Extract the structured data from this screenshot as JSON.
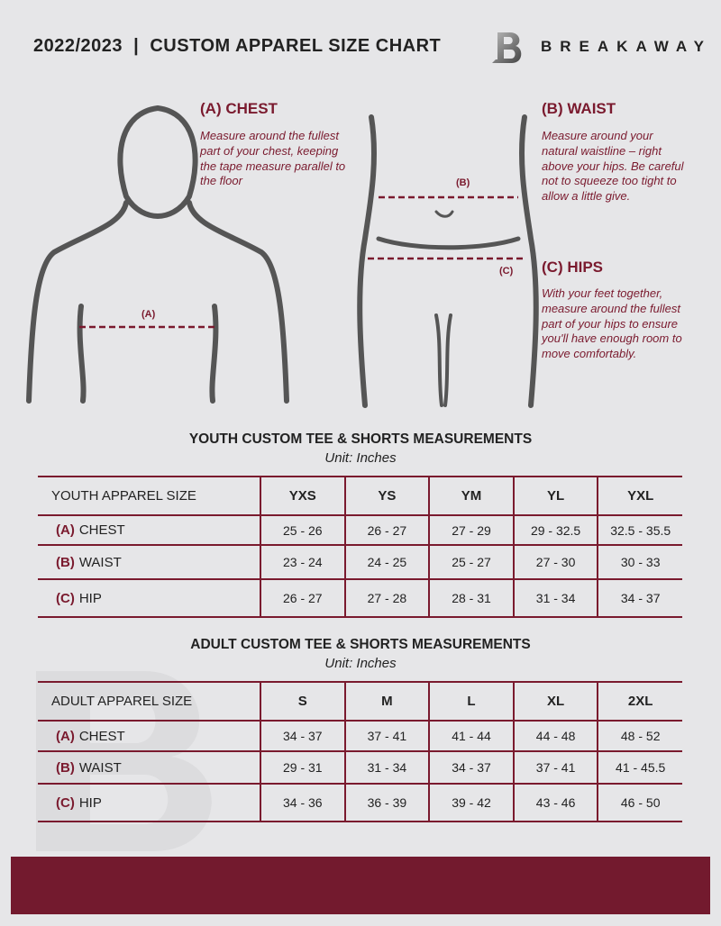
{
  "header": {
    "title": "2022/2023  |  CUSTOM APPAREL SIZE CHART",
    "brand": "BREAKAWAY",
    "logo_letter": "B"
  },
  "colors": {
    "accent": "#7a1a2e",
    "background": "#e6e6e8"
  },
  "chest": {
    "heading": "(A) CHEST",
    "description": "Measure around the fullest part of your chest, keeping the tape measure parallel to the floor",
    "marker": "(A)"
  },
  "waist": {
    "heading": "(B) WAIST",
    "description": "Measure around your natural waistline – right above your hips. Be careful not to squeeze too tight to allow a little give.",
    "marker": "(B)"
  },
  "hips": {
    "heading": "(C) HIPS",
    "description": "With your feet together, measure around the fullest part of your hips to ensure you'll have enough room to move comfortably.",
    "marker": "(C)"
  },
  "youth": {
    "title": "YOUTH CUSTOM TEE & SHORTS MEASUREMENTS",
    "unit": "Unit: Inches",
    "header": [
      "YOUTH APPAREL SIZE",
      "YXS",
      "YS",
      "YM",
      "YL",
      "YXL"
    ],
    "rows": [
      {
        "code": "(A)",
        "name": "CHEST",
        "values": [
          "25 - 26",
          "26 - 27",
          "27 - 29",
          "29 - 32.5",
          "32.5 - 35.5"
        ]
      },
      {
        "code": "(B)",
        "name": "WAIST",
        "values": [
          "23 - 24",
          "24 - 25",
          "25 - 27",
          "27 - 30",
          "30 - 33"
        ]
      },
      {
        "code": "(C)",
        "name": "HIP",
        "values": [
          "26 - 27",
          "27 - 28",
          "28 - 31",
          "31 - 34",
          "34 - 37"
        ]
      }
    ]
  },
  "adult": {
    "title": "ADULT CUSTOM TEE & SHORTS MEASUREMENTS",
    "unit": "Unit: Inches",
    "header": [
      "ADULT APPAREL SIZE",
      "S",
      "M",
      "L",
      "XL",
      "2XL"
    ],
    "rows": [
      {
        "code": "(A)",
        "name": "CHEST",
        "values": [
          "34 - 37",
          "37 - 41",
          "41 - 44",
          "44 - 48",
          "48 - 52"
        ]
      },
      {
        "code": "(B)",
        "name": "WAIST",
        "values": [
          "29 - 31",
          "31 - 34",
          "34 - 37",
          "37 - 41",
          "41 - 45.5"
        ]
      },
      {
        "code": "(C)",
        "name": "HIP",
        "values": [
          "34 - 36",
          "36 - 39",
          "39 - 42",
          "43 - 46",
          "46 - 50"
        ]
      }
    ]
  }
}
